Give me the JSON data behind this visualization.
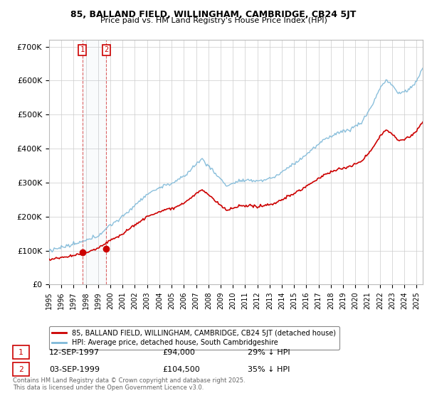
{
  "title_line1": "85, BALLAND FIELD, WILLINGHAM, CAMBRIDGE, CB24 5JT",
  "title_line2": "Price paid vs. HM Land Registry's House Price Index (HPI)",
  "ylim": [
    0,
    720000
  ],
  "yticks": [
    0,
    100000,
    200000,
    300000,
    400000,
    500000,
    600000,
    700000
  ],
  "ytick_labels": [
    "£0",
    "£100K",
    "£200K",
    "£300K",
    "£400K",
    "£500K",
    "£600K",
    "£700K"
  ],
  "hpi_color": "#7db8d8",
  "price_color": "#cc0000",
  "marker_color": "#cc0000",
  "purchase1_date": 1997.71,
  "purchase1_price": 94000,
  "purchase2_date": 1999.67,
  "purchase2_price": 104500,
  "legend_label1": "85, BALLAND FIELD, WILLINGHAM, CAMBRIDGE, CB24 5JT (detached house)",
  "legend_label2": "HPI: Average price, detached house, South Cambridgeshire",
  "table_row1": [
    "1",
    "12-SEP-1997",
    "£94,000",
    "29% ↓ HPI"
  ],
  "table_row2": [
    "2",
    "03-SEP-1999",
    "£104,500",
    "35% ↓ HPI"
  ],
  "footnote": "Contains HM Land Registry data © Crown copyright and database right 2025.\nThis data is licensed under the Open Government Licence v3.0.",
  "background_color": "#ffffff",
  "grid_color": "#cccccc",
  "xmin": 1995,
  "xmax": 2025.5
}
